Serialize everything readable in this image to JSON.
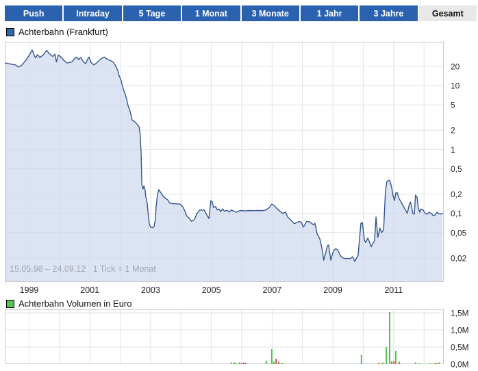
{
  "tabs": [
    {
      "label": "Push",
      "active": false
    },
    {
      "label": "Intraday",
      "active": false
    },
    {
      "label": "5 Tage",
      "active": false
    },
    {
      "label": "1 Monat",
      "active": false
    },
    {
      "label": "3 Monate",
      "active": false
    },
    {
      "label": "1 Jahr",
      "active": false
    },
    {
      "label": "3 Jahre",
      "active": false
    },
    {
      "label": "Gesamt",
      "active": true
    }
  ],
  "colors": {
    "tab_bg": "#2b62b0",
    "tab_text": "#ffffff",
    "tab_active_bg": "#e8e8e8",
    "tab_active_text": "#111111",
    "grid": "#e2e2e6",
    "plot_border": "#c8c8c8",
    "price_line": "#33568c",
    "price_fill": "rgba(205,215,238,0.7)",
    "legend_price_swatch": "#3465a4",
    "legend_volume_swatch": "#55c455",
    "volume_up": "#4cc24c",
    "volume_down": "#e05050",
    "tick_text": "#222222",
    "watermark_text": "#a2a8b2"
  },
  "chart_data": [
    {
      "type": "line",
      "title": "Achterbahn (Frankfurt)",
      "legend": "Achterbahn (Frankfurt)",
      "annotation": "15.05.98 – 24.09.12   1 Tick = 1 Monat",
      "scale": "log",
      "x_unit": "year",
      "xlim": [
        1998.2,
        2012.85
      ],
      "grid_years_from": 1999,
      "grid_years_to": 2012,
      "xtick_labels": [
        1999,
        2001,
        2003,
        2005,
        2007,
        2009,
        2011
      ],
      "ygrid_values": [
        50,
        20,
        10,
        5,
        2,
        1,
        0.5,
        0.2,
        0.1,
        0.05,
        0.02
      ],
      "yticks": [
        {
          "v": 20,
          "label": "20"
        },
        {
          "v": 10,
          "label": "10"
        },
        {
          "v": 5,
          "label": "5"
        },
        {
          "v": 2,
          "label": "2"
        },
        {
          "v": 1,
          "label": "1"
        },
        {
          "v": 0.5,
          "label": "0,5"
        },
        {
          "v": 0.2,
          "label": "0,2"
        },
        {
          "v": 0.1,
          "label": "0,1"
        },
        {
          "v": 0.05,
          "label": "0,05"
        },
        {
          "v": 0.02,
          "label": "0,02"
        }
      ],
      "series": [
        {
          "name": "Achterbahn (Frankfurt)",
          "points": [
            [
              1998.2,
              22.6
            ],
            [
              1998.38,
              21.8
            ],
            [
              1998.56,
              21.0
            ],
            [
              1998.65,
              19.5
            ],
            [
              1998.74,
              20.5
            ],
            [
              1998.88,
              24.5
            ],
            [
              1999.01,
              30
            ],
            [
              1999.1,
              36
            ],
            [
              1999.21,
              27
            ],
            [
              1999.28,
              30.5
            ],
            [
              1999.35,
              27.5
            ],
            [
              1999.46,
              30
            ],
            [
              1999.58,
              35.5
            ],
            [
              1999.67,
              31.5
            ],
            [
              1999.78,
              28.5
            ],
            [
              1999.85,
              31
            ],
            [
              1999.9,
              23.5
            ],
            [
              1999.96,
              30
            ],
            [
              2000.03,
              28.5
            ],
            [
              2000.14,
              25
            ],
            [
              2000.25,
              22.5
            ],
            [
              2000.41,
              23.5
            ],
            [
              2000.48,
              26
            ],
            [
              2000.57,
              28
            ],
            [
              2000.63,
              25.5
            ],
            [
              2000.7,
              27.5
            ],
            [
              2000.79,
              23.5
            ],
            [
              2000.86,
              22
            ],
            [
              2000.93,
              26
            ],
            [
              2000.97,
              28
            ],
            [
              2001.04,
              23
            ],
            [
              2001.13,
              21
            ],
            [
              2001.22,
              22.5
            ],
            [
              2001.31,
              25
            ],
            [
              2001.38,
              26.5
            ],
            [
              2001.47,
              28
            ],
            [
              2001.54,
              26.5
            ],
            [
              2001.6,
              25.5
            ],
            [
              2001.69,
              24.5
            ],
            [
              2001.76,
              23.5
            ],
            [
              2001.83,
              21
            ],
            [
              2001.87,
              19.4
            ],
            [
              2001.92,
              17.2
            ],
            [
              2001.96,
              14.5
            ],
            [
              2002.03,
              12
            ],
            [
              2002.1,
              8.8
            ],
            [
              2002.17,
              7.2
            ],
            [
              2002.21,
              6.1
            ],
            [
              2002.26,
              4.8
            ],
            [
              2002.33,
              3.9
            ],
            [
              2002.39,
              2.9
            ],
            [
              2002.48,
              2.7
            ],
            [
              2002.55,
              2.5
            ],
            [
              2002.62,
              2.26
            ],
            [
              2002.66,
              1.68
            ],
            [
              2002.69,
              0.8
            ],
            [
              2002.71,
              0.28
            ],
            [
              2002.75,
              0.24
            ],
            [
              2002.78,
              0.27
            ],
            [
              2002.82,
              0.23
            ],
            [
              2002.84,
              0.184
            ],
            [
              2002.89,
              0.144
            ],
            [
              2002.93,
              0.088
            ],
            [
              2002.96,
              0.067
            ],
            [
              2003.0,
              0.061
            ],
            [
              2003.07,
              0.06
            ],
            [
              2003.11,
              0.062
            ],
            [
              2003.16,
              0.081
            ],
            [
              2003.18,
              0.124
            ],
            [
              2003.23,
              0.203
            ],
            [
              2003.27,
              0.235
            ],
            [
              2003.34,
              0.21
            ],
            [
              2003.41,
              0.185
            ],
            [
              2003.5,
              0.17
            ],
            [
              2003.56,
              0.163
            ],
            [
              2003.63,
              0.145
            ],
            [
              2003.74,
              0.142
            ],
            [
              2003.86,
              0.141
            ],
            [
              2003.97,
              0.14
            ],
            [
              2004.06,
              0.127
            ],
            [
              2004.13,
              0.108
            ],
            [
              2004.19,
              0.091
            ],
            [
              2004.28,
              0.083
            ],
            [
              2004.35,
              0.075
            ],
            [
              2004.44,
              0.08
            ],
            [
              2004.53,
              0.1
            ],
            [
              2004.62,
              0.113
            ],
            [
              2004.69,
              0.112
            ],
            [
              2004.76,
              0.113
            ],
            [
              2004.83,
              0.098
            ],
            [
              2004.87,
              0.091
            ],
            [
              2004.92,
              0.083
            ],
            [
              2004.98,
              0.158
            ],
            [
              2005.03,
              0.15
            ],
            [
              2005.07,
              0.124
            ],
            [
              2005.14,
              0.128
            ],
            [
              2005.19,
              0.113
            ],
            [
              2005.25,
              0.117
            ],
            [
              2005.3,
              0.107
            ],
            [
              2005.37,
              0.117
            ],
            [
              2005.43,
              0.108
            ],
            [
              2005.52,
              0.112
            ],
            [
              2005.59,
              0.105
            ],
            [
              2005.66,
              0.113
            ],
            [
              2005.75,
              0.108
            ],
            [
              2005.82,
              0.104
            ],
            [
              2005.88,
              0.108
            ],
            [
              2005.97,
              0.111
            ],
            [
              2006.11,
              0.109
            ],
            [
              2006.24,
              0.111
            ],
            [
              2006.38,
              0.11
            ],
            [
              2006.51,
              0.111
            ],
            [
              2006.65,
              0.11
            ],
            [
              2006.78,
              0.112
            ],
            [
              2006.9,
              0.122
            ],
            [
              2006.99,
              0.14
            ],
            [
              2007.06,
              0.134
            ],
            [
              2007.15,
              0.12
            ],
            [
              2007.24,
              0.11
            ],
            [
              2007.35,
              0.1
            ],
            [
              2007.44,
              0.105
            ],
            [
              2007.51,
              0.088
            ],
            [
              2007.62,
              0.078
            ],
            [
              2007.73,
              0.069
            ],
            [
              2007.82,
              0.072
            ],
            [
              2007.91,
              0.075
            ],
            [
              2007.96,
              0.072
            ],
            [
              2008.03,
              0.061
            ],
            [
              2008.14,
              0.075
            ],
            [
              2008.23,
              0.074
            ],
            [
              2008.3,
              0.07
            ],
            [
              2008.36,
              0.066
            ],
            [
              2008.41,
              0.07
            ],
            [
              2008.48,
              0.048
            ],
            [
              2008.57,
              0.04
            ],
            [
              2008.63,
              0.03
            ],
            [
              2008.7,
              0.0185
            ],
            [
              2008.82,
              0.031
            ],
            [
              2008.86,
              0.032
            ],
            [
              2008.93,
              0.0185
            ],
            [
              2009.02,
              0.026
            ],
            [
              2009.09,
              0.028
            ],
            [
              2009.15,
              0.027
            ],
            [
              2009.27,
              0.021
            ],
            [
              2009.36,
              0.0197
            ],
            [
              2009.47,
              0.0197
            ],
            [
              2009.58,
              0.0195
            ],
            [
              2009.65,
              0.021
            ],
            [
              2009.72,
              0.0177
            ],
            [
              2009.83,
              0.022
            ],
            [
              2009.92,
              0.069
            ],
            [
              2009.97,
              0.072
            ],
            [
              2010.04,
              0.038
            ],
            [
              2010.08,
              0.035
            ],
            [
              2010.15,
              0.041
            ],
            [
              2010.21,
              0.035
            ],
            [
              2010.26,
              0.03
            ],
            [
              2010.33,
              0.035
            ],
            [
              2010.37,
              0.037
            ],
            [
              2010.42,
              0.088
            ],
            [
              2010.48,
              0.042
            ],
            [
              2010.55,
              0.059
            ],
            [
              2010.6,
              0.05
            ],
            [
              2010.67,
              0.055
            ],
            [
              2010.73,
              0.22
            ],
            [
              2010.78,
              0.317
            ],
            [
              2010.85,
              0.33
            ],
            [
              2010.89,
              0.31
            ],
            [
              2010.94,
              0.25
            ],
            [
              2010.98,
              0.19
            ],
            [
              2011.03,
              0.158
            ],
            [
              2011.07,
              0.208
            ],
            [
              2011.12,
              0.21
            ],
            [
              2011.18,
              0.17
            ],
            [
              2011.27,
              0.143
            ],
            [
              2011.34,
              0.124
            ],
            [
              2011.41,
              0.109
            ],
            [
              2011.45,
              0.1
            ],
            [
              2011.52,
              0.143
            ],
            [
              2011.56,
              0.15
            ],
            [
              2011.63,
              0.1
            ],
            [
              2011.68,
              0.097
            ],
            [
              2011.72,
              0.193
            ],
            [
              2011.77,
              0.18
            ],
            [
              2011.81,
              0.124
            ],
            [
              2011.86,
              0.104
            ],
            [
              2011.9,
              0.117
            ],
            [
              2011.97,
              0.113
            ],
            [
              2012.04,
              0.1
            ],
            [
              2012.1,
              0.097
            ],
            [
              2012.17,
              0.104
            ],
            [
              2012.24,
              0.1
            ],
            [
              2012.3,
              0.092
            ],
            [
              2012.37,
              0.095
            ],
            [
              2012.43,
              0.104
            ],
            [
              2012.48,
              0.1
            ],
            [
              2012.54,
              0.097
            ],
            [
              2012.61,
              0.1
            ]
          ]
        }
      ]
    },
    {
      "type": "bar",
      "title": "Achterbahn Volumen in Euro",
      "legend": "Achterbahn Volumen in Euro",
      "x_unit": "year",
      "xlim": [
        1998.2,
        2012.85
      ],
      "grid_years_from": 1999,
      "grid_years_to": 2012,
      "ylim": [
        0,
        1.5
      ],
      "y_unit": "million EUR",
      "yticks": [
        {
          "v": 1.5,
          "label": "1,5M"
        },
        {
          "v": 1.0,
          "label": "1,0M"
        },
        {
          "v": 0.5,
          "label": "0,5M"
        },
        {
          "v": 0.0,
          "label": "0,0M"
        }
      ],
      "bars": [
        [
          2005.66,
          0.05,
          "up"
        ],
        [
          2005.75,
          0.05,
          "up"
        ],
        [
          2005.82,
          0.04,
          "up"
        ],
        [
          2005.93,
          0.05,
          "down"
        ],
        [
          2006.0,
          0.04,
          "down"
        ],
        [
          2006.07,
          0.05,
          "down"
        ],
        [
          2006.13,
          0.04,
          "down"
        ],
        [
          2006.81,
          0.1,
          "up"
        ],
        [
          2006.99,
          0.44,
          "up"
        ],
        [
          2007.06,
          0.07,
          "up"
        ],
        [
          2007.13,
          0.16,
          "down"
        ],
        [
          2007.22,
          0.07,
          "down"
        ],
        [
          2007.33,
          0.04,
          "up"
        ],
        [
          2009.94,
          0.28,
          "up"
        ],
        [
          2010.51,
          0.04,
          "down"
        ],
        [
          2010.64,
          0.05,
          "up"
        ],
        [
          2010.76,
          0.5,
          "up"
        ],
        [
          2010.87,
          1.52,
          "up"
        ],
        [
          2010.94,
          0.08,
          "down"
        ],
        [
          2011.01,
          0.08,
          "down"
        ],
        [
          2011.07,
          0.38,
          "up"
        ],
        [
          2011.19,
          0.07,
          "down"
        ],
        [
          2011.72,
          0.05,
          "up"
        ],
        [
          2011.84,
          0.03,
          "up"
        ],
        [
          2012.2,
          0.03,
          "up"
        ],
        [
          2012.36,
          0.03,
          "up"
        ],
        [
          2012.4,
          0.04,
          "down"
        ],
        [
          2012.49,
          0.05,
          "up"
        ]
      ]
    }
  ]
}
